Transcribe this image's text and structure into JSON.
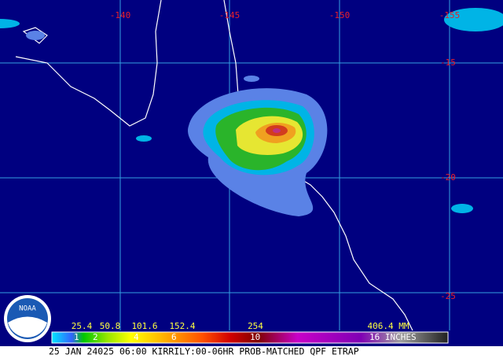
{
  "map": {
    "longitude_labels": [
      "-140",
      "-145",
      "-150",
      "-155"
    ],
    "latitude_labels": [
      "-15",
      "-20",
      "-25"
    ],
    "logo": "NOAA",
    "legend": {
      "mm_labels": [
        "25.4",
        "50.8",
        "101.6",
        "152.4",
        "254",
        "406.4 MM"
      ],
      "inch_labels": [
        "1",
        "2",
        "4",
        "6",
        "10",
        "16 INCHES"
      ]
    },
    "footer": "25 JAN 24025 06:00 KIRRILY:00-06HR PROB-MATCHED QPF ETRAP"
  }
}
